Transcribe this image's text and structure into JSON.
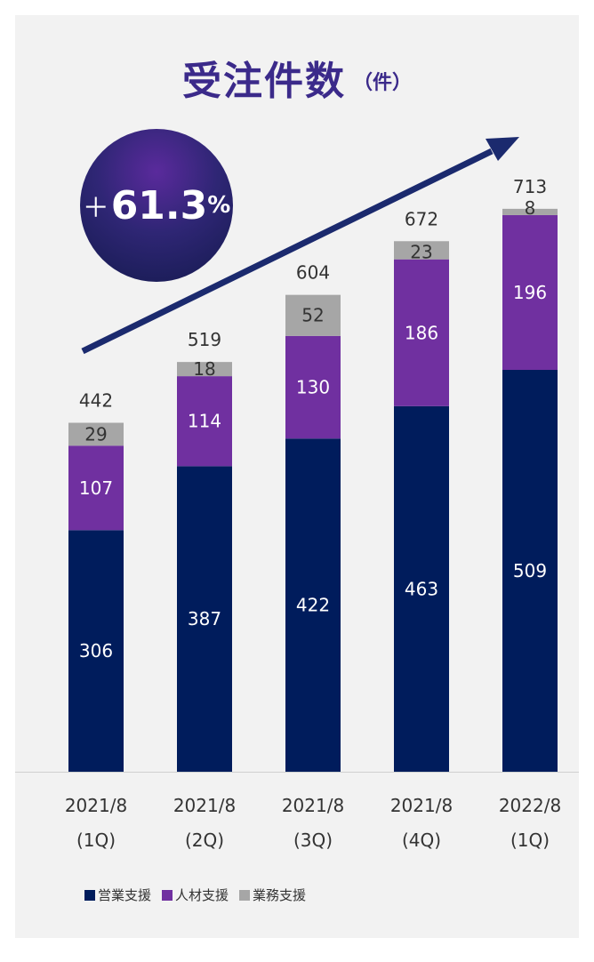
{
  "title": {
    "main": "受注件数",
    "unit": "（件）"
  },
  "badge": {
    "sign": "＋",
    "number": "61.3",
    "percent": "%"
  },
  "chart_data": {
    "type": "bar",
    "stacked": true,
    "categories": [
      [
        "2021/8",
        "(1Q)"
      ],
      [
        "2021/8",
        "(2Q)"
      ],
      [
        "2021/8",
        "(3Q)"
      ],
      [
        "2021/8",
        "(4Q)"
      ],
      [
        "2022/8",
        "(1Q)"
      ]
    ],
    "series": [
      {
        "name": "営業支援",
        "values": [
          306,
          387,
          422,
          463,
          509
        ],
        "color": "#001c5c"
      },
      {
        "name": "人材支援",
        "values": [
          107,
          114,
          130,
          186,
          196
        ],
        "color": "#7030a0"
      },
      {
        "name": "業務支援",
        "values": [
          29,
          18,
          52,
          23,
          8
        ],
        "color": "#a6a6a6"
      }
    ],
    "totals": [
      442,
      519,
      604,
      672,
      713
    ],
    "legend_position": "bottom-left",
    "grid": false,
    "trend_arrow_color": "#1b2a6e"
  }
}
